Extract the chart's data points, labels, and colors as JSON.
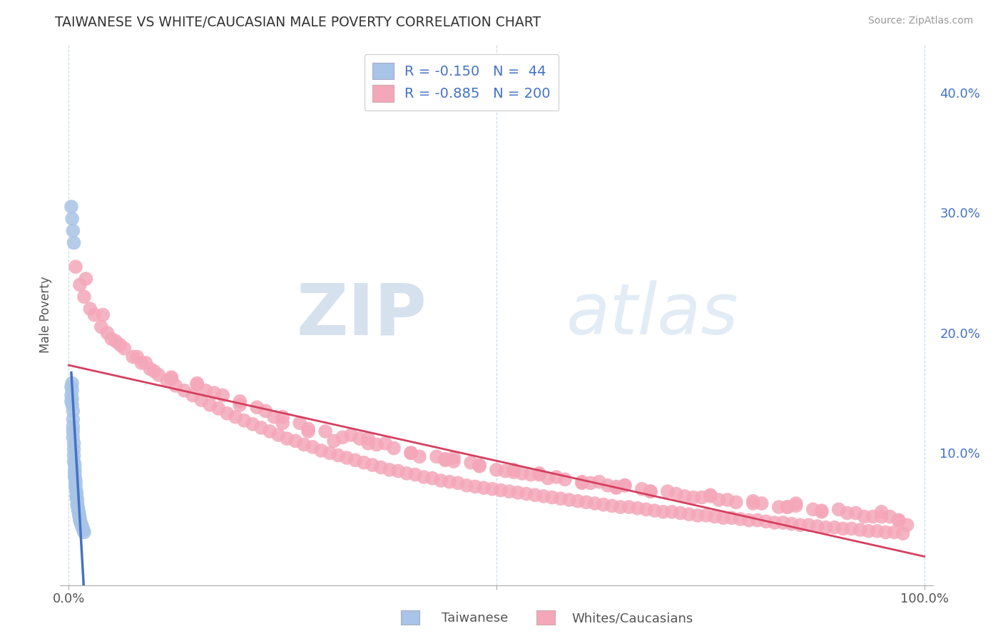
{
  "title": "TAIWANESE VS WHITE/CAUCASIAN MALE POVERTY CORRELATION CHART",
  "source_text": "Source: ZipAtlas.com",
  "ylabel": "Male Poverty",
  "legend_label_1": "Taiwanese",
  "legend_label_2": "Whites/Caucasians",
  "R1": "-0.150",
  "N1": "44",
  "R2": "-0.885",
  "N2": "200",
  "color_taiwanese": "#a8c4e6",
  "color_taiwanese_line": "#4472c4",
  "color_white": "#f4a7b9",
  "color_white_line": "#d44060",
  "color_legend_text": "#4472c4",
  "xlim": [
    -0.01,
    1.01
  ],
  "ylim": [
    -0.01,
    0.44
  ],
  "yticks_right": [
    0.1,
    0.2,
    0.3,
    0.4
  ],
  "ytick_right_labels": [
    "10.0%",
    "20.0%",
    "30.0%",
    "40.0%"
  ],
  "background_color": "#ffffff",
  "grid_color": "#c8d8e8",
  "watermark_zip": "ZIP",
  "watermark_atlas": "atlas",
  "taiwanese_x": [
    0.003,
    0.003,
    0.003,
    0.004,
    0.004,
    0.004,
    0.004,
    0.005,
    0.005,
    0.005,
    0.005,
    0.005,
    0.006,
    0.006,
    0.006,
    0.006,
    0.007,
    0.007,
    0.007,
    0.007,
    0.008,
    0.008,
    0.008,
    0.009,
    0.009,
    0.009,
    0.01,
    0.01,
    0.01,
    0.011,
    0.011,
    0.012,
    0.012,
    0.013,
    0.013,
    0.014,
    0.015,
    0.016,
    0.017,
    0.018,
    0.003,
    0.004,
    0.005,
    0.006
  ],
  "taiwanese_y": [
    0.155,
    0.148,
    0.143,
    0.158,
    0.152,
    0.145,
    0.14,
    0.135,
    0.128,
    0.122,
    0.118,
    0.113,
    0.108,
    0.103,
    0.098,
    0.093,
    0.09,
    0.086,
    0.083,
    0.08,
    0.077,
    0.074,
    0.071,
    0.068,
    0.065,
    0.063,
    0.061,
    0.058,
    0.056,
    0.054,
    0.052,
    0.05,
    0.048,
    0.046,
    0.044,
    0.042,
    0.04,
    0.038,
    0.036,
    0.034,
    0.305,
    0.295,
    0.285,
    0.275
  ],
  "white_x": [
    0.008,
    0.013,
    0.018,
    0.025,
    0.03,
    0.038,
    0.045,
    0.055,
    0.065,
    0.075,
    0.085,
    0.095,
    0.105,
    0.115,
    0.125,
    0.135,
    0.145,
    0.155,
    0.165,
    0.175,
    0.185,
    0.195,
    0.205,
    0.215,
    0.225,
    0.235,
    0.245,
    0.255,
    0.265,
    0.275,
    0.285,
    0.295,
    0.305,
    0.315,
    0.325,
    0.335,
    0.345,
    0.355,
    0.365,
    0.375,
    0.385,
    0.395,
    0.405,
    0.415,
    0.425,
    0.435,
    0.445,
    0.455,
    0.465,
    0.475,
    0.485,
    0.495,
    0.505,
    0.515,
    0.525,
    0.535,
    0.545,
    0.555,
    0.565,
    0.575,
    0.585,
    0.595,
    0.605,
    0.615,
    0.625,
    0.635,
    0.645,
    0.655,
    0.665,
    0.675,
    0.685,
    0.695,
    0.705,
    0.715,
    0.725,
    0.735,
    0.745,
    0.755,
    0.765,
    0.775,
    0.785,
    0.795,
    0.805,
    0.815,
    0.825,
    0.835,
    0.845,
    0.855,
    0.865,
    0.875,
    0.885,
    0.895,
    0.905,
    0.915,
    0.925,
    0.935,
    0.945,
    0.955,
    0.965,
    0.975,
    0.02,
    0.04,
    0.06,
    0.09,
    0.12,
    0.16,
    0.2,
    0.24,
    0.28,
    0.32,
    0.36,
    0.4,
    0.44,
    0.48,
    0.52,
    0.56,
    0.6,
    0.64,
    0.68,
    0.72,
    0.76,
    0.8,
    0.84,
    0.88,
    0.92,
    0.96,
    0.15,
    0.25,
    0.35,
    0.45,
    0.55,
    0.65,
    0.75,
    0.85,
    0.95,
    0.1,
    0.2,
    0.3,
    0.4,
    0.5,
    0.6,
    0.7,
    0.8,
    0.9,
    0.18,
    0.28,
    0.38,
    0.48,
    0.58,
    0.68,
    0.78,
    0.88,
    0.98,
    0.05,
    0.15,
    0.25,
    0.35,
    0.45,
    0.55,
    0.65,
    0.75,
    0.85,
    0.95,
    0.08,
    0.22,
    0.33,
    0.43,
    0.53,
    0.63,
    0.73,
    0.83,
    0.93,
    0.12,
    0.23,
    0.34,
    0.44,
    0.54,
    0.64,
    0.74,
    0.84,
    0.94,
    0.17,
    0.27,
    0.37,
    0.47,
    0.57,
    0.67,
    0.77,
    0.87,
    0.97,
    0.31,
    0.41,
    0.51,
    0.61,
    0.71,
    0.81,
    0.91,
    0.97,
    0.52,
    0.62
  ],
  "white_y": [
    0.255,
    0.24,
    0.23,
    0.22,
    0.215,
    0.205,
    0.2,
    0.193,
    0.187,
    0.18,
    0.175,
    0.17,
    0.165,
    0.16,
    0.156,
    0.152,
    0.148,
    0.144,
    0.14,
    0.137,
    0.133,
    0.13,
    0.127,
    0.124,
    0.121,
    0.118,
    0.115,
    0.112,
    0.11,
    0.107,
    0.105,
    0.102,
    0.1,
    0.098,
    0.096,
    0.094,
    0.092,
    0.09,
    0.088,
    0.086,
    0.085,
    0.083,
    0.082,
    0.08,
    0.079,
    0.077,
    0.076,
    0.075,
    0.073,
    0.072,
    0.071,
    0.07,
    0.069,
    0.068,
    0.067,
    0.066,
    0.065,
    0.064,
    0.063,
    0.062,
    0.061,
    0.06,
    0.059,
    0.058,
    0.057,
    0.056,
    0.055,
    0.055,
    0.054,
    0.053,
    0.052,
    0.051,
    0.051,
    0.05,
    0.049,
    0.048,
    0.048,
    0.047,
    0.046,
    0.046,
    0.045,
    0.044,
    0.044,
    0.043,
    0.042,
    0.042,
    0.041,
    0.04,
    0.04,
    0.039,
    0.038,
    0.038,
    0.037,
    0.037,
    0.036,
    0.035,
    0.035,
    0.034,
    0.034,
    0.033,
    0.245,
    0.215,
    0.19,
    0.175,
    0.162,
    0.152,
    0.14,
    0.13,
    0.12,
    0.113,
    0.107,
    0.1,
    0.094,
    0.089,
    0.084,
    0.079,
    0.075,
    0.071,
    0.068,
    0.064,
    0.061,
    0.058,
    0.055,
    0.052,
    0.05,
    0.047,
    0.157,
    0.125,
    0.108,
    0.093,
    0.082,
    0.073,
    0.065,
    0.058,
    0.051,
    0.168,
    0.143,
    0.118,
    0.1,
    0.086,
    0.076,
    0.068,
    0.06,
    0.053,
    0.148,
    0.118,
    0.104,
    0.09,
    0.078,
    0.068,
    0.059,
    0.051,
    0.04,
    0.195,
    0.158,
    0.13,
    0.112,
    0.096,
    0.083,
    0.073,
    0.064,
    0.056,
    0.047,
    0.18,
    0.138,
    0.115,
    0.097,
    0.083,
    0.073,
    0.063,
    0.055,
    0.047,
    0.163,
    0.135,
    0.112,
    0.095,
    0.082,
    0.072,
    0.063,
    0.055,
    0.047,
    0.15,
    0.125,
    0.108,
    0.092,
    0.08,
    0.07,
    0.061,
    0.053,
    0.044,
    0.11,
    0.097,
    0.085,
    0.075,
    0.066,
    0.058,
    0.05,
    0.044,
    0.086,
    0.076
  ]
}
